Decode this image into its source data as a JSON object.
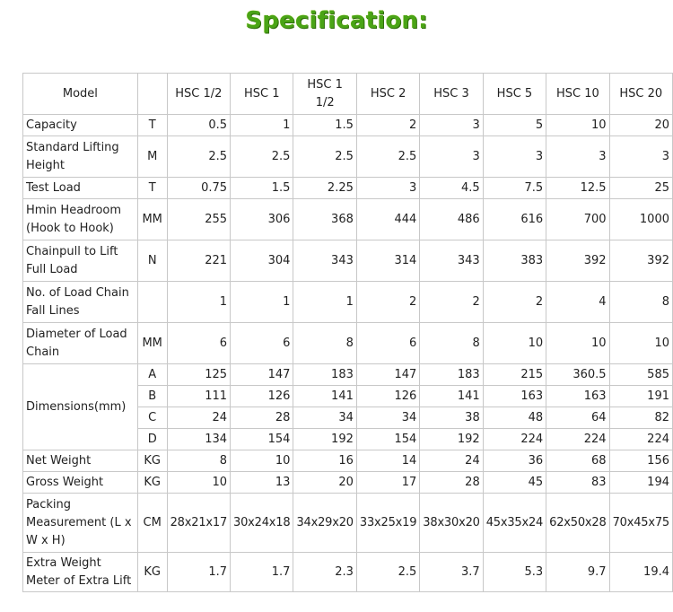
{
  "title": "Specification:",
  "header": {
    "model": "Model",
    "unit": "",
    "models": [
      "HSC 1/2",
      "HSC 1",
      "HSC 1 1/2",
      "HSC 2",
      "HSC 3",
      "HSC 5",
      "HSC 10",
      "HSC 20"
    ]
  },
  "rows": {
    "capacity": {
      "label": "Capacity",
      "unit": "T",
      "values": [
        "0.5",
        "1",
        "1.5",
        "2",
        "3",
        "5",
        "10",
        "20"
      ]
    },
    "lifting_height": {
      "label": "Standard Lifting Height",
      "unit": "M",
      "values": [
        "2.5",
        "2.5",
        "2.5",
        "2.5",
        "3",
        "3",
        "3",
        "3"
      ]
    },
    "test_load": {
      "label": "Test Load",
      "unit": "T",
      "values": [
        "0.75",
        "1.5",
        "2.25",
        "3",
        "4.5",
        "7.5",
        "12.5",
        "25"
      ]
    },
    "headroom": {
      "label": "Hmin Headroom (Hook to Hook)",
      "unit": "MM",
      "values": [
        "255",
        "306",
        "368",
        "444",
        "486",
        "616",
        "700",
        "1000"
      ]
    },
    "chainpull": {
      "label": "Chainpull to Lift Full Load",
      "unit": "N",
      "values": [
        "221",
        "304",
        "343",
        "314",
        "343",
        "383",
        "392",
        "392"
      ]
    },
    "fall_lines": {
      "label": "No. of Load Chain Fall Lines",
      "unit": "",
      "values": [
        "1",
        "1",
        "1",
        "2",
        "2",
        "2",
        "4",
        "8"
      ]
    },
    "chain_diameter": {
      "label": "Diameter of Load Chain",
      "unit": "MM",
      "values": [
        "6",
        "6",
        "8",
        "6",
        "8",
        "10",
        "10",
        "10"
      ]
    },
    "dimensions": {
      "label": "Dimensions(mm)",
      "sub": [
        {
          "unit": "A",
          "values": [
            "125",
            "147",
            "183",
            "147",
            "183",
            "215",
            "360.5",
            "585"
          ]
        },
        {
          "unit": "B",
          "values": [
            "111",
            "126",
            "141",
            "126",
            "141",
            "163",
            "163",
            "191"
          ]
        },
        {
          "unit": "C",
          "values": [
            "24",
            "28",
            "34",
            "34",
            "38",
            "48",
            "64",
            "82"
          ]
        },
        {
          "unit": "D",
          "values": [
            "134",
            "154",
            "192",
            "154",
            "192",
            "224",
            "224",
            "224"
          ]
        }
      ]
    },
    "net_weight": {
      "label": "Net Weight",
      "unit": "KG",
      "values": [
        "8",
        "10",
        "16",
        "14",
        "24",
        "36",
        "68",
        "156"
      ]
    },
    "gross_weight": {
      "label": "Gross Weight",
      "unit": "KG",
      "values": [
        "10",
        "13",
        "20",
        "17",
        "28",
        "45",
        "83",
        "194"
      ]
    },
    "packing": {
      "label": "Packing Measurement (L x W x H)",
      "unit": "CM",
      "values": [
        "28x21x17",
        "30x24x18",
        "34x29x20",
        "33x25x19",
        "38x30x20",
        "45x35x24",
        "62x50x28",
        "70x45x75"
      ]
    },
    "extra_weight": {
      "label": "Extra Weight Meter of Extra Lift",
      "unit": "KG",
      "values": [
        "1.7",
        "1.7",
        "2.3",
        "2.5",
        "3.7",
        "5.3",
        "9.7",
        "19.4"
      ]
    }
  }
}
